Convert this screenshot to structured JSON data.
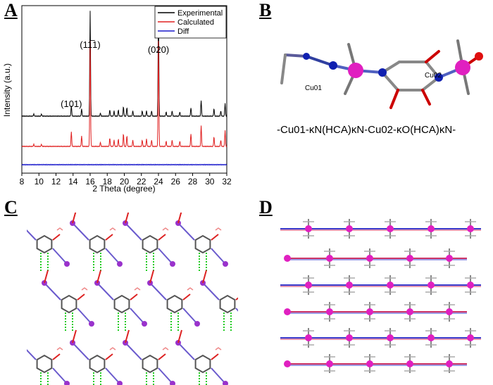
{
  "panels": {
    "a": {
      "letter": "A"
    },
    "b": {
      "letter": "B",
      "atom_labels": [
        "Cu01",
        "Cu02"
      ],
      "caption": "-Cu01-κN(HCA)κN-Cu02-κO(HCA)κN-"
    },
    "c": {
      "letter": "C"
    },
    "d": {
      "letter": "D"
    }
  },
  "chart_data": {
    "type": "line",
    "xlabel": "2 Theta (degree)",
    "ylabel": "Intensity (a.u.)",
    "xlim": [
      8,
      32
    ],
    "xticks": [
      8,
      10,
      12,
      14,
      16,
      18,
      20,
      22,
      24,
      26,
      28,
      30,
      32
    ],
    "legend_position": "top-right",
    "annotations": [
      {
        "label": "(101)",
        "x": 13.8
      },
      {
        "label": "(11̅1)",
        "x": 16.0
      },
      {
        "label": "(020)",
        "x": 24.0
      }
    ],
    "series": [
      {
        "name": "Experimental",
        "color": "#000000",
        "peaks": [
          [
            9.4,
            0.02
          ],
          [
            10.3,
            0.02
          ],
          [
            13.8,
            0.1
          ],
          [
            15.0,
            0.07
          ],
          [
            16.0,
            1.0
          ],
          [
            17.2,
            0.03
          ],
          [
            18.3,
            0.06
          ],
          [
            18.8,
            0.05
          ],
          [
            19.3,
            0.06
          ],
          [
            19.9,
            0.09
          ],
          [
            20.3,
            0.08
          ],
          [
            21.0,
            0.05
          ],
          [
            22.1,
            0.05
          ],
          [
            22.6,
            0.05
          ],
          [
            23.2,
            0.05
          ],
          [
            24.0,
            1.0
          ],
          [
            24.9,
            0.04
          ],
          [
            25.6,
            0.05
          ],
          [
            26.5,
            0.04
          ],
          [
            27.8,
            0.08
          ],
          [
            29.0,
            0.15
          ],
          [
            30.5,
            0.07
          ],
          [
            31.3,
            0.05
          ],
          [
            31.8,
            0.12
          ]
        ]
      },
      {
        "name": "Calculated",
        "color": "#e02020",
        "peaks": [
          [
            9.4,
            0.02
          ],
          [
            10.3,
            0.02
          ],
          [
            13.8,
            0.14
          ],
          [
            15.0,
            0.1
          ],
          [
            16.0,
            1.0
          ],
          [
            17.2,
            0.04
          ],
          [
            18.3,
            0.08
          ],
          [
            18.8,
            0.06
          ],
          [
            19.3,
            0.07
          ],
          [
            19.9,
            0.12
          ],
          [
            20.3,
            0.1
          ],
          [
            21.0,
            0.06
          ],
          [
            22.1,
            0.06
          ],
          [
            22.6,
            0.07
          ],
          [
            23.2,
            0.06
          ],
          [
            24.0,
            1.0
          ],
          [
            24.9,
            0.05
          ],
          [
            25.6,
            0.06
          ],
          [
            26.5,
            0.05
          ],
          [
            27.8,
            0.12
          ],
          [
            29.0,
            0.2
          ],
          [
            30.5,
            0.09
          ],
          [
            31.3,
            0.06
          ],
          [
            31.8,
            0.15
          ]
        ]
      },
      {
        "name": "Diff",
        "color": "#1a1acc",
        "peaks": [
          [
            16.0,
            0.01
          ],
          [
            24.0,
            0.01
          ]
        ]
      }
    ]
  }
}
